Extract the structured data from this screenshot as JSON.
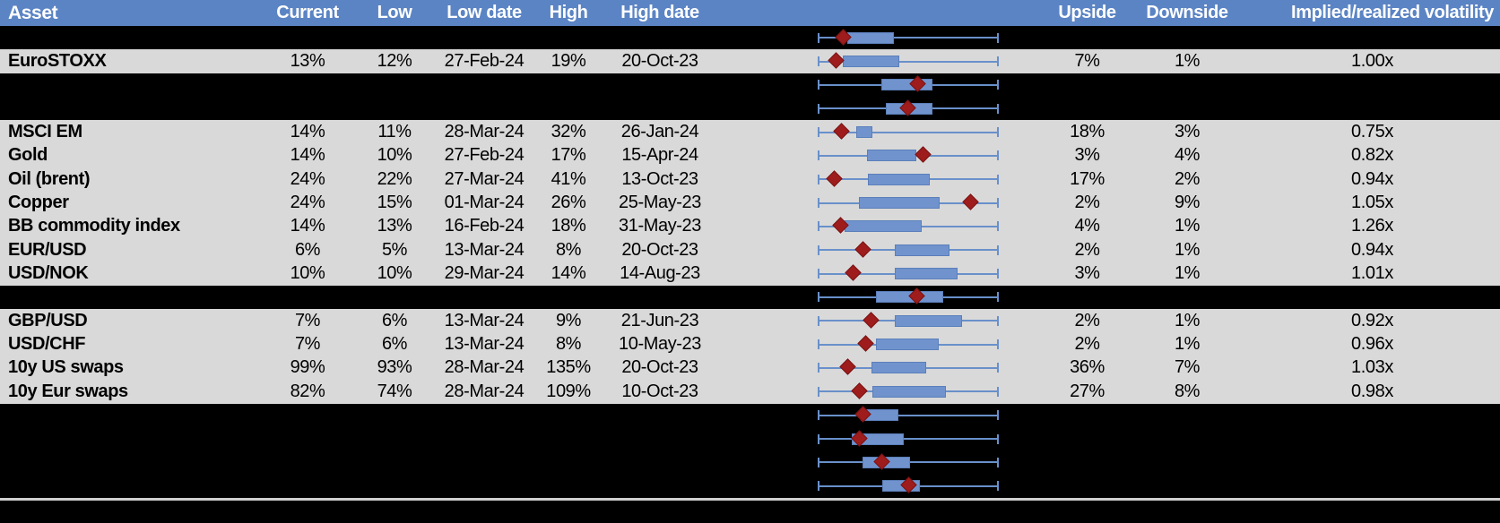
{
  "colors": {
    "header_bg": "#5b84c4",
    "header_text": "#ffffff",
    "row_bg": "#d9d9d9",
    "redacted_bg": "#000000",
    "box_fill": "#7093ce",
    "box_border": "#5b7fba",
    "whisker": "#6990ca",
    "diamond_fill": "#9e1c1c",
    "diamond_border": "#7a1313",
    "divider": "#cfcfcf"
  },
  "header": {
    "columns": [
      {
        "key": "asset",
        "label": "Asset"
      },
      {
        "key": "current",
        "label": "Current"
      },
      {
        "key": "low",
        "label": "Low"
      },
      {
        "key": "lowdate",
        "label": "Low date"
      },
      {
        "key": "high",
        "label": "High"
      },
      {
        "key": "highdate",
        "label": "High date"
      },
      {
        "key": "chart",
        "label": ""
      },
      {
        "key": "upside",
        "label": "Upside"
      },
      {
        "key": "downside",
        "label": "Downside"
      },
      {
        "key": "implied",
        "label": "Implied/realized volatility"
      }
    ]
  },
  "rows": [
    {
      "kind": "blank",
      "plot": {
        "box": [
          0.16,
          0.42
        ],
        "diamond": 0.135
      }
    },
    {
      "kind": "data",
      "asset": "EuroSTOXX",
      "current": "13%",
      "low": "12%",
      "low_date": "27-Feb-24",
      "high": "19%",
      "high_date": "20-Oct-23",
      "upside": "7%",
      "downside": "1%",
      "implied": "1.00x",
      "plot": {
        "box": [
          0.135,
          0.45
        ],
        "diamond": 0.095
      }
    },
    {
      "kind": "blank",
      "plot": {
        "box": [
          0.35,
          0.635
        ],
        "diamond": 0.55
      }
    },
    {
      "kind": "blank",
      "plot": {
        "box": [
          0.375,
          0.635
        ],
        "diamond": 0.495
      }
    },
    {
      "kind": "data",
      "asset": "MSCI EM",
      "current": "14%",
      "low": "11%",
      "low_date": "28-Mar-24",
      "high": "32%",
      "high_date": "26-Jan-24",
      "upside": "18%",
      "downside": "3%",
      "implied": "0.75x",
      "plot": {
        "box": [
          0.21,
          0.3
        ],
        "diamond": 0.125
      }
    },
    {
      "kind": "data",
      "asset": "Gold",
      "current": "14%",
      "low": "10%",
      "low_date": "27-Feb-24",
      "high": "17%",
      "high_date": "15-Apr-24",
      "upside": "3%",
      "downside": "4%",
      "implied": "0.82x",
      "plot": {
        "box": [
          0.27,
          0.545
        ],
        "diamond": 0.585
      }
    },
    {
      "kind": "data",
      "asset": "Oil (brent)",
      "current": "24%",
      "low": "22%",
      "low_date": "27-Mar-24",
      "high": "41%",
      "high_date": "13-Oct-23",
      "upside": "17%",
      "downside": "2%",
      "implied": "0.94x",
      "plot": {
        "box": [
          0.275,
          0.62
        ],
        "diamond": 0.085
      }
    },
    {
      "kind": "data",
      "asset": "Copper",
      "current": "24%",
      "low": "15%",
      "low_date": "01-Mar-24",
      "high": "26%",
      "high_date": "25-May-23",
      "upside": "2%",
      "downside": "9%",
      "implied": "1.05x",
      "plot": {
        "box": [
          0.225,
          0.675
        ],
        "diamond": 0.845
      }
    },
    {
      "kind": "data",
      "asset": "BB commodity index",
      "current": "14%",
      "low": "13%",
      "low_date": "16-Feb-24",
      "high": "18%",
      "high_date": "31-May-23",
      "upside": "4%",
      "downside": "1%",
      "implied": "1.26x",
      "plot": {
        "box": [
          0.145,
          0.575
        ],
        "diamond": 0.12
      }
    },
    {
      "kind": "data",
      "asset": "EUR/USD",
      "current": "6%",
      "low": "5%",
      "low_date": "13-Mar-24",
      "high": "8%",
      "high_date": "20-Oct-23",
      "upside": "2%",
      "downside": "1%",
      "implied": "0.94x",
      "plot": {
        "box": [
          0.425,
          0.73
        ],
        "diamond": 0.245
      }
    },
    {
      "kind": "data",
      "asset": "USD/NOK",
      "current": "10%",
      "low": "10%",
      "low_date": "29-Mar-24",
      "high": "14%",
      "high_date": "14-Aug-23",
      "upside": "3%",
      "downside": "1%",
      "implied": "1.01x",
      "plot": {
        "box": [
          0.425,
          0.775
        ],
        "diamond": 0.19
      }
    },
    {
      "kind": "blank",
      "plot": {
        "box": [
          0.32,
          0.695
        ],
        "diamond": 0.545
      }
    },
    {
      "kind": "data",
      "asset": "GBP/USD",
      "current": "7%",
      "low": "6%",
      "low_date": "13-Mar-24",
      "high": "9%",
      "high_date": "21-Jun-23",
      "upside": "2%",
      "downside": "1%",
      "implied": "0.92x",
      "plot": {
        "box": [
          0.425,
          0.8
        ],
        "diamond": 0.29
      }
    },
    {
      "kind": "data",
      "asset": "USD/CHF",
      "current": "7%",
      "low": "6%",
      "low_date": "13-Mar-24",
      "high": "8%",
      "high_date": "10-May-23",
      "upside": "2%",
      "downside": "1%",
      "implied": "0.96x",
      "plot": {
        "box": [
          0.32,
          0.67
        ],
        "diamond": 0.265
      }
    },
    {
      "kind": "data",
      "asset": "10y US swaps",
      "current": "99%",
      "low": "93%",
      "low_date": "28-Mar-24",
      "high": "135%",
      "high_date": "20-Oct-23",
      "upside": "36%",
      "downside": "7%",
      "implied": "1.03x",
      "plot": {
        "box": [
          0.295,
          0.6
        ],
        "diamond": 0.16
      }
    },
    {
      "kind": "data",
      "asset": "10y Eur swaps",
      "current": "82%",
      "low": "74%",
      "low_date": "28-Mar-24",
      "high": "109%",
      "high_date": "10-Oct-23",
      "upside": "27%",
      "downside": "8%",
      "implied": "0.98x",
      "plot": {
        "box": [
          0.3,
          0.71
        ],
        "diamond": 0.225
      }
    },
    {
      "kind": "blank",
      "plot": {
        "box": [
          0.235,
          0.445
        ],
        "diamond": 0.245
      }
    },
    {
      "kind": "blank",
      "plot": {
        "box": [
          0.185,
          0.475
        ],
        "diamond": 0.225
      }
    },
    {
      "kind": "blank",
      "plot": {
        "box": [
          0.245,
          0.51
        ],
        "diamond": 0.35
      }
    },
    {
      "kind": "blank",
      "plot": {
        "box": [
          0.355,
          0.565
        ],
        "diamond": 0.5
      }
    }
  ],
  "chart_data": {
    "type": "table",
    "title": "Implied volatility ranges with embedded box-whisker plots (whisker = 12m range, diamond = current level)",
    "columns": [
      "Asset",
      "Current",
      "Low",
      "Low date",
      "High",
      "High date",
      "Upside",
      "Downside",
      "Implied/realized volatility"
    ],
    "rows": [
      [
        "EuroSTOXX",
        "13%",
        "12%",
        "27-Feb-24",
        "19%",
        "20-Oct-23",
        "7%",
        "1%",
        "1.00x"
      ],
      [
        "MSCI EM",
        "14%",
        "11%",
        "28-Mar-24",
        "32%",
        "26-Jan-24",
        "18%",
        "3%",
        "0.75x"
      ],
      [
        "Gold",
        "14%",
        "10%",
        "27-Feb-24",
        "17%",
        "15-Apr-24",
        "3%",
        "4%",
        "0.82x"
      ],
      [
        "Oil (brent)",
        "24%",
        "22%",
        "27-Mar-24",
        "41%",
        "13-Oct-23",
        "17%",
        "2%",
        "0.94x"
      ],
      [
        "Copper",
        "24%",
        "15%",
        "01-Mar-24",
        "26%",
        "25-May-23",
        "2%",
        "9%",
        "1.05x"
      ],
      [
        "BB commodity index",
        "14%",
        "13%",
        "16-Feb-24",
        "18%",
        "31-May-23",
        "4%",
        "1%",
        "1.26x"
      ],
      [
        "EUR/USD",
        "6%",
        "5%",
        "13-Mar-24",
        "8%",
        "20-Oct-23",
        "2%",
        "1%",
        "0.94x"
      ],
      [
        "USD/NOK",
        "10%",
        "10%",
        "29-Mar-24",
        "14%",
        "14-Aug-23",
        "3%",
        "1%",
        "1.01x"
      ],
      [
        "GBP/USD",
        "7%",
        "6%",
        "13-Mar-24",
        "9%",
        "21-Jun-23",
        "2%",
        "1%",
        "0.92x"
      ],
      [
        "USD/CHF",
        "7%",
        "6%",
        "13-Mar-24",
        "8%",
        "10-May-23",
        "2%",
        "1%",
        "0.96x"
      ],
      [
        "10y US swaps",
        "99%",
        "93%",
        "28-Mar-24",
        "135%",
        "20-Oct-23",
        "36%",
        "7%",
        "1.03x"
      ],
      [
        "10y Eur swaps",
        "82%",
        "74%",
        "28-Mar-24",
        "109%",
        "10-Oct-23",
        "27%",
        "8%",
        "0.98x"
      ]
    ],
    "boxplot_axis": {
      "normalized_range": [
        0,
        1
      ],
      "note": "box start/end and diamond given as fractions of whisker span in rows[].plot"
    }
  }
}
